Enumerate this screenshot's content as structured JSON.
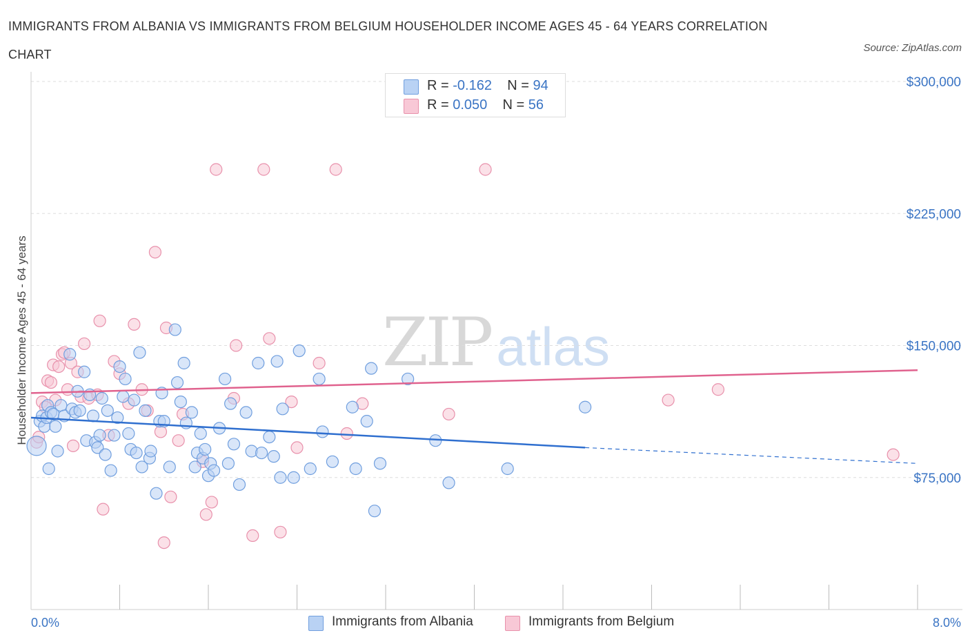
{
  "title": "IMMIGRANTS FROM ALBANIA VS IMMIGRANTS FROM BELGIUM HOUSEHOLDER INCOME AGES 45 - 64 YEARS CORRELATION CHART",
  "source": "Source: ZipAtlas.com",
  "watermark": {
    "zip": "ZIP",
    "atlas": "atlas"
  },
  "legend": {
    "albania": {
      "r_label": "R =",
      "r_value": "-0.162",
      "n_label": "N =",
      "n_value": "94"
    },
    "belgium": {
      "r_label": "R =",
      "r_value": "0.050",
      "n_label": "N =",
      "n_value": "56"
    }
  },
  "colors": {
    "albania_fill": "#b9d2f4",
    "albania_stroke": "#6f9ede",
    "albania_line": "#2f6fcf",
    "belgium_fill": "#f8c8d6",
    "belgium_stroke": "#e890ab",
    "belgium_line": "#e0628e",
    "tick_text": "#3a74c4",
    "grid": "#dddddd"
  },
  "chart_data": {
    "type": "scatter",
    "title": "IMMIGRANTS FROM ALBANIA VS IMMIGRANTS FROM BELGIUM HOUSEHOLDER INCOME AGES 45 - 64 YEARS CORRELATION CHART",
    "xlabel": "",
    "ylabel": "Householder Income Ages 45 - 64 years",
    "xlim": [
      0,
      8.0
    ],
    "ylim": [
      0,
      300000
    ],
    "x_unit": "%",
    "x_tick_labels": [
      "0.0%",
      "8.0%"
    ],
    "y_ticks": [
      75000,
      150000,
      225000,
      300000
    ],
    "y_tick_labels": [
      "$75,000",
      "$150,000",
      "$225,000",
      "$300,000"
    ],
    "grid": true,
    "legend_position": "top-center",
    "series": [
      {
        "name": "Immigrants from Albania",
        "color": "#6f9ede",
        "trend": {
          "x0": 0.0,
          "y0": 109000,
          "x1": 5.0,
          "y1": 92000,
          "dashed_to_x": 8.0,
          "dashed_to_y": 83000
        },
        "points": [
          [
            0.05,
            93000
          ],
          [
            0.08,
            107000
          ],
          [
            0.1,
            110000
          ],
          [
            0.12,
            104000
          ],
          [
            0.14,
            109000
          ],
          [
            0.15,
            116000
          ],
          [
            0.16,
            80000
          ],
          [
            0.18,
            112000
          ],
          [
            0.2,
            111000
          ],
          [
            0.22,
            104000
          ],
          [
            0.24,
            90000
          ],
          [
            0.27,
            116000
          ],
          [
            0.3,
            110000
          ],
          [
            0.35,
            145000
          ],
          [
            0.37,
            114000
          ],
          [
            0.4,
            112000
          ],
          [
            0.42,
            124000
          ],
          [
            0.44,
            113000
          ],
          [
            0.48,
            135000
          ],
          [
            0.5,
            96000
          ],
          [
            0.53,
            122000
          ],
          [
            0.56,
            110000
          ],
          [
            0.58,
            95000
          ],
          [
            0.6,
            92000
          ],
          [
            0.62,
            99000
          ],
          [
            0.64,
            120000
          ],
          [
            0.67,
            88000
          ],
          [
            0.69,
            113000
          ],
          [
            0.72,
            79000
          ],
          [
            0.75,
            99000
          ],
          [
            0.78,
            109000
          ],
          [
            0.8,
            138000
          ],
          [
            0.83,
            121000
          ],
          [
            0.85,
            131000
          ],
          [
            0.88,
            100000
          ],
          [
            0.9,
            91000
          ],
          [
            0.93,
            119000
          ],
          [
            0.95,
            89000
          ],
          [
            0.98,
            146000
          ],
          [
            1.0,
            81000
          ],
          [
            1.03,
            113000
          ],
          [
            1.07,
            86000
          ],
          [
            1.08,
            90000
          ],
          [
            1.13,
            66000
          ],
          [
            1.16,
            107000
          ],
          [
            1.18,
            123000
          ],
          [
            1.2,
            107000
          ],
          [
            1.25,
            81000
          ],
          [
            1.3,
            159000
          ],
          [
            1.32,
            129000
          ],
          [
            1.35,
            118000
          ],
          [
            1.38,
            140000
          ],
          [
            1.4,
            106000
          ],
          [
            1.45,
            112000
          ],
          [
            1.48,
            81000
          ],
          [
            1.5,
            89000
          ],
          [
            1.53,
            100000
          ],
          [
            1.55,
            86000
          ],
          [
            1.57,
            91000
          ],
          [
            1.6,
            76000
          ],
          [
            1.62,
            83000
          ],
          [
            1.65,
            79000
          ],
          [
            1.7,
            103000
          ],
          [
            1.75,
            131000
          ],
          [
            1.78,
            83000
          ],
          [
            1.8,
            117000
          ],
          [
            1.83,
            94000
          ],
          [
            1.88,
            71000
          ],
          [
            1.94,
            112000
          ],
          [
            1.99,
            90000
          ],
          [
            2.05,
            140000
          ],
          [
            2.08,
            89000
          ],
          [
            2.15,
            98000
          ],
          [
            2.19,
            87000
          ],
          [
            2.22,
            141000
          ],
          [
            2.25,
            75000
          ],
          [
            2.27,
            114000
          ],
          [
            2.37,
            75000
          ],
          [
            2.42,
            147000
          ],
          [
            2.52,
            80000
          ],
          [
            2.6,
            131000
          ],
          [
            2.63,
            101000
          ],
          [
            2.72,
            84000
          ],
          [
            2.9,
            115000
          ],
          [
            2.93,
            80000
          ],
          [
            3.03,
            107000
          ],
          [
            3.07,
            137000
          ],
          [
            3.1,
            56000
          ],
          [
            3.15,
            83000
          ],
          [
            3.4,
            131000
          ],
          [
            3.65,
            96000
          ],
          [
            3.77,
            72000
          ],
          [
            4.3,
            80000
          ],
          [
            5.0,
            115000
          ]
        ]
      },
      {
        "name": "Immigrants from Belgium",
        "color": "#e890ab",
        "trend": {
          "x0": 0.0,
          "y0": 123000,
          "x1": 8.0,
          "y1": 136000
        },
        "points": [
          [
            0.05,
            95000
          ],
          [
            0.07,
            98000
          ],
          [
            0.1,
            118000
          ],
          [
            0.13,
            115000
          ],
          [
            0.15,
            130000
          ],
          [
            0.18,
            129000
          ],
          [
            0.2,
            139000
          ],
          [
            0.22,
            119000
          ],
          [
            0.25,
            138000
          ],
          [
            0.28,
            145000
          ],
          [
            0.3,
            146000
          ],
          [
            0.33,
            125000
          ],
          [
            0.36,
            140000
          ],
          [
            0.38,
            93000
          ],
          [
            0.42,
            135000
          ],
          [
            0.45,
            121000
          ],
          [
            0.48,
            151000
          ],
          [
            0.52,
            120000
          ],
          [
            0.6,
            122000
          ],
          [
            0.62,
            164000
          ],
          [
            0.65,
            57000
          ],
          [
            0.7,
            99000
          ],
          [
            0.75,
            141000
          ],
          [
            0.8,
            134000
          ],
          [
            0.88,
            117000
          ],
          [
            0.93,
            162000
          ],
          [
            1.0,
            125000
          ],
          [
            1.05,
            113000
          ],
          [
            1.12,
            203000
          ],
          [
            1.17,
            101000
          ],
          [
            1.2,
            38000
          ],
          [
            1.22,
            160000
          ],
          [
            1.26,
            64000
          ],
          [
            1.33,
            96000
          ],
          [
            1.37,
            111000
          ],
          [
            1.55,
            84000
          ],
          [
            1.58,
            54000
          ],
          [
            1.63,
            61000
          ],
          [
            1.67,
            250000
          ],
          [
            1.83,
            120000
          ],
          [
            1.85,
            150000
          ],
          [
            2.0,
            42000
          ],
          [
            2.1,
            250000
          ],
          [
            2.15,
            154000
          ],
          [
            2.25,
            44000
          ],
          [
            2.35,
            118000
          ],
          [
            2.4,
            92000
          ],
          [
            2.6,
            140000
          ],
          [
            2.75,
            250000
          ],
          [
            2.85,
            100000
          ],
          [
            2.99,
            117000
          ],
          [
            3.77,
            111000
          ],
          [
            4.1,
            250000
          ],
          [
            5.75,
            119000
          ],
          [
            6.2,
            125000
          ],
          [
            7.78,
            88000
          ]
        ]
      }
    ]
  },
  "bottom_legend": {
    "albania_label": "Immigrants from Albania",
    "belgium_label": "Immigrants from Belgium"
  }
}
